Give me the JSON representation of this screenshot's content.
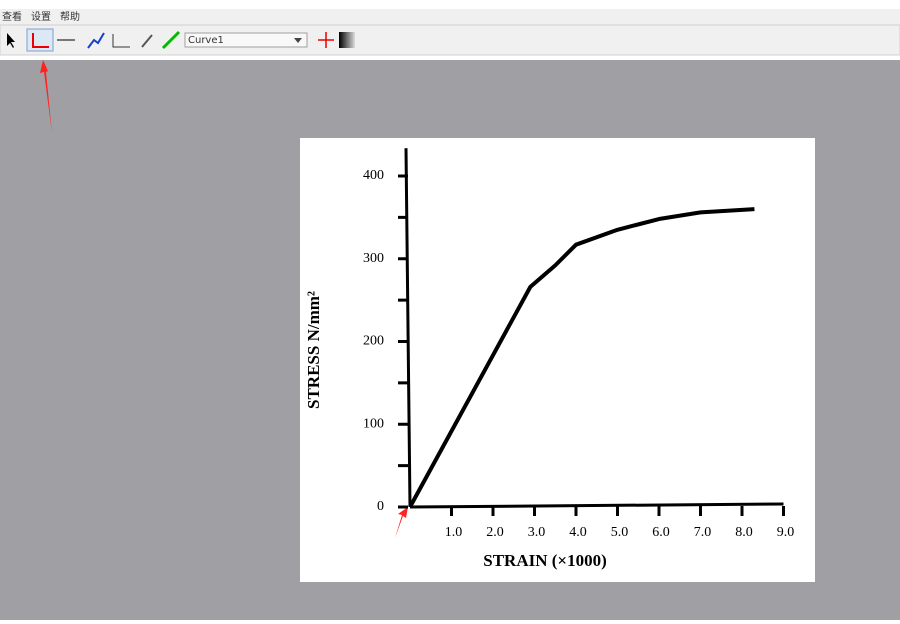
{
  "menu": [
    "查看",
    "设置",
    "帮助"
  ],
  "toolbar": {
    "curve_select": "Curve1"
  },
  "chart_data": {
    "type": "line",
    "x_label": "STRAIN (×1000)",
    "y_label": "STRESS N/mm²",
    "x": [
      0,
      2.9,
      3.5,
      4,
      5,
      6,
      7,
      8.3
    ],
    "values": [
      0,
      266,
      292,
      317,
      335,
      348,
      356,
      360
    ],
    "color": "#000000",
    "xlim": [
      0,
      9
    ],
    "ylim": [
      0,
      430
    ],
    "xticks": [
      {
        "value": 1,
        "label": "1.0"
      },
      {
        "value": 2,
        "label": "2.0"
      },
      {
        "value": 3,
        "label": "3.0"
      },
      {
        "value": 4,
        "label": "4.0"
      },
      {
        "value": 5,
        "label": "5.0"
      },
      {
        "value": 6,
        "label": "6.0"
      },
      {
        "value": 7,
        "label": "7.0"
      },
      {
        "value": 8,
        "label": "8.0"
      },
      {
        "value": 9,
        "label": "9.0"
      }
    ],
    "yticks": [
      0,
      100,
      200,
      300,
      400
    ],
    "yminor_ticks": [
      50,
      150,
      250,
      350
    ]
  }
}
